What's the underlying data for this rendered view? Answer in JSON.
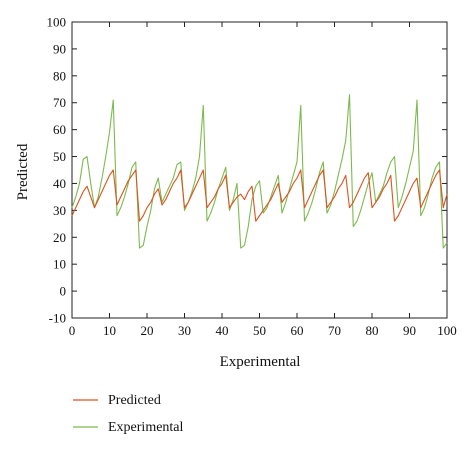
{
  "chart_data": {
    "type": "line",
    "title": "",
    "xlabel": "Experimental",
    "ylabel": "Predicted",
    "xlim": [
      0,
      100
    ],
    "ylim": [
      -10,
      100
    ],
    "xticks": [
      0,
      10,
      20,
      30,
      40,
      50,
      60,
      70,
      80,
      90,
      100
    ],
    "yticks": [
      -10,
      0,
      10,
      20,
      30,
      40,
      50,
      60,
      70,
      80,
      90,
      100
    ],
    "grid": false,
    "legend_position": "bottom-left",
    "series": [
      {
        "name": "Predicted",
        "color": "#d9541e",
        "x": [
          0,
          1,
          2,
          3,
          4,
          5,
          6,
          7,
          8,
          9,
          10,
          11,
          12,
          13,
          14,
          15,
          16,
          17,
          18,
          19,
          20,
          21,
          22,
          23,
          24,
          25,
          26,
          27,
          28,
          29,
          30,
          31,
          32,
          33,
          34,
          35,
          36,
          37,
          38,
          39,
          40,
          41,
          42,
          43,
          44,
          45,
          46,
          47,
          48,
          49,
          50,
          51,
          52,
          53,
          54,
          55,
          56,
          57,
          58,
          59,
          60,
          61,
          62,
          63,
          64,
          65,
          66,
          67,
          68,
          69,
          70,
          71,
          72,
          73,
          74,
          75,
          76,
          77,
          78,
          79,
          80,
          81,
          82,
          83,
          84,
          85,
          86,
          87,
          88,
          89,
          90,
          91,
          92,
          93,
          94,
          95,
          96,
          97,
          98,
          99,
          100
        ],
        "y": [
          28,
          31,
          34,
          37,
          39,
          35,
          31,
          34,
          37,
          40,
          43,
          45,
          32,
          35,
          38,
          41,
          43,
          45,
          26,
          28,
          31,
          33,
          36,
          38,
          32,
          34,
          37,
          40,
          42,
          45,
          31,
          33,
          36,
          39,
          42,
          45,
          31,
          33,
          35,
          38,
          40,
          43,
          31,
          33,
          35,
          36,
          34,
          37,
          39,
          26,
          28,
          30,
          32,
          34,
          37,
          40,
          33,
          35,
          37,
          40,
          42,
          45,
          31,
          34,
          37,
          40,
          43,
          45,
          31,
          33,
          35,
          38,
          40,
          43,
          31,
          33,
          36,
          39,
          42,
          44,
          31,
          33,
          35,
          38,
          40,
          43,
          26,
          28,
          31,
          34,
          37,
          40,
          42,
          31,
          34,
          37,
          40,
          43,
          45,
          31,
          36
        ]
      },
      {
        "name": "Experimental",
        "color": "#7dba4e",
        "x": [
          0,
          1,
          2,
          3,
          4,
          5,
          6,
          7,
          8,
          9,
          10,
          11,
          12,
          13,
          14,
          15,
          16,
          17,
          18,
          19,
          20,
          21,
          22,
          23,
          24,
          25,
          26,
          27,
          28,
          29,
          30,
          31,
          32,
          33,
          34,
          35,
          36,
          37,
          38,
          39,
          40,
          41,
          42,
          43,
          44,
          45,
          46,
          47,
          48,
          49,
          50,
          51,
          52,
          53,
          54,
          55,
          56,
          57,
          58,
          59,
          60,
          61,
          62,
          63,
          64,
          65,
          66,
          67,
          68,
          69,
          70,
          71,
          72,
          73,
          74,
          75,
          76,
          77,
          78,
          79,
          80,
          81,
          82,
          83,
          84,
          85,
          86,
          87,
          88,
          89,
          90,
          91,
          92,
          93,
          94,
          95,
          96,
          97,
          98,
          99,
          100
        ],
        "y": [
          31,
          35,
          40,
          49,
          50,
          40,
          31,
          35,
          42,
          50,
          59,
          71,
          28,
          31,
          35,
          40,
          46,
          48,
          16,
          17,
          24,
          30,
          38,
          42,
          33,
          36,
          39,
          42,
          47,
          48,
          30,
          33,
          37,
          42,
          50,
          69,
          26,
          29,
          33,
          38,
          42,
          46,
          30,
          34,
          40,
          16,
          17,
          24,
          34,
          39,
          41,
          29,
          31,
          35,
          39,
          43,
          29,
          33,
          38,
          43,
          48,
          69,
          26,
          29,
          33,
          38,
          44,
          48,
          29,
          32,
          37,
          43,
          49,
          56,
          73,
          24,
          26,
          30,
          35,
          40,
          44,
          33,
          36,
          39,
          44,
          48,
          50,
          31,
          35,
          40,
          46,
          52,
          71,
          28,
          31,
          36,
          42,
          46,
          48,
          16,
          18
        ]
      }
    ]
  }
}
